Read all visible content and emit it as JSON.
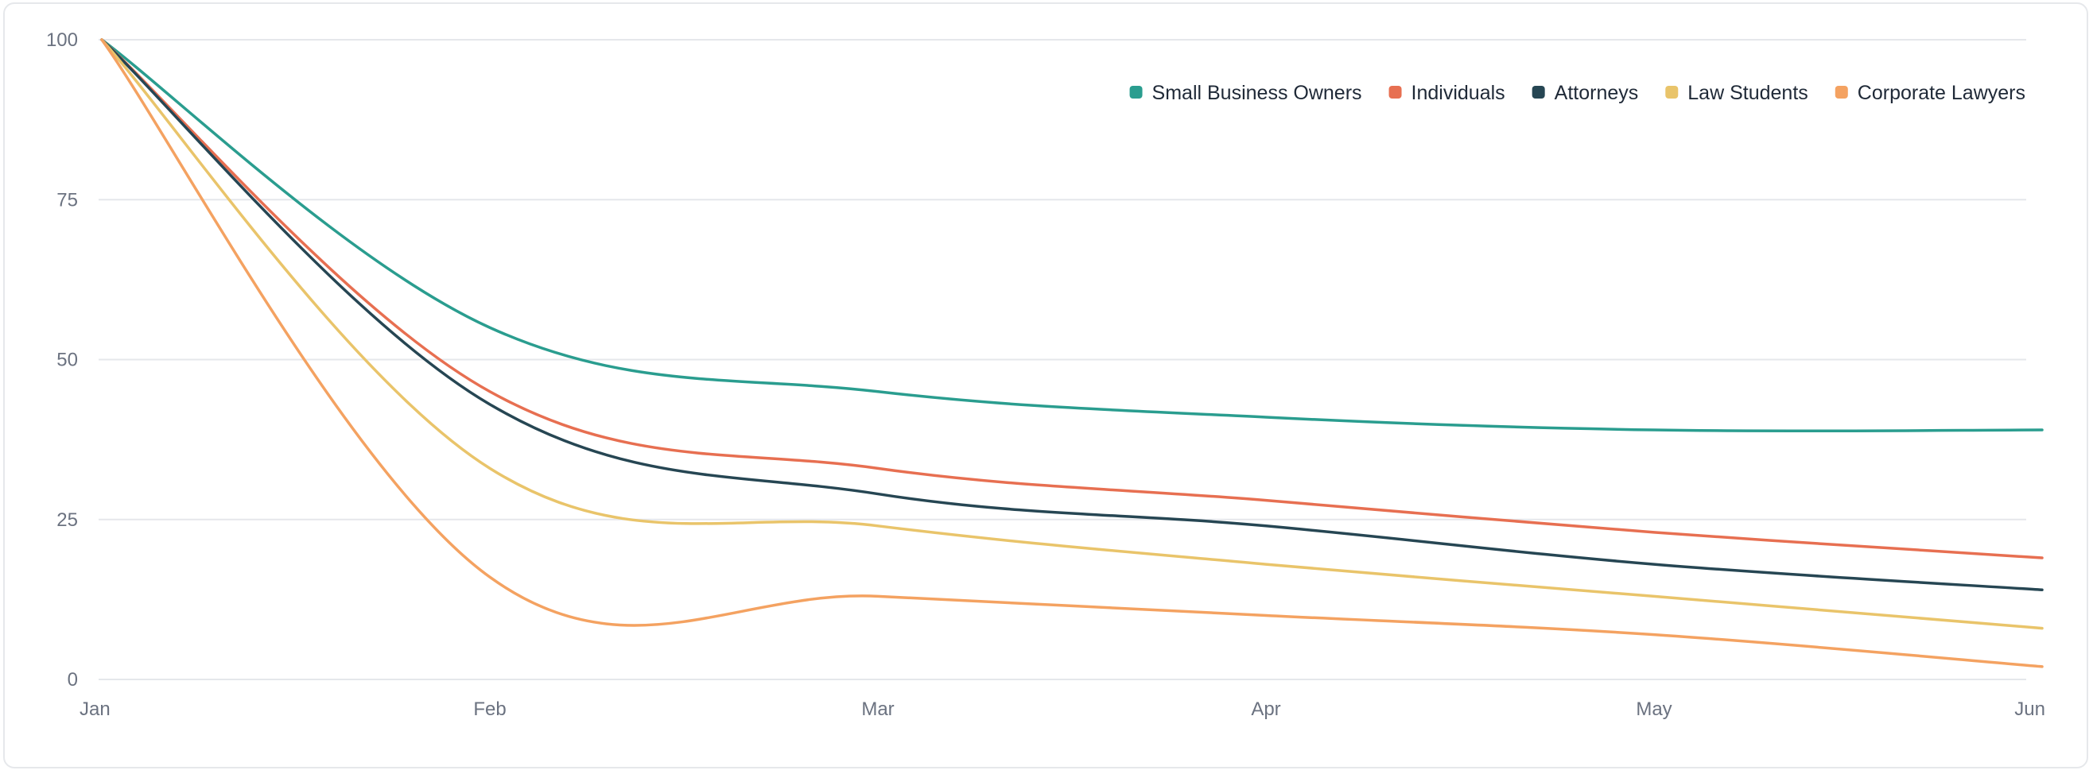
{
  "chart_data": {
    "type": "line",
    "title": "",
    "xlabel": "",
    "ylabel": "",
    "x": [
      "Jan",
      "Feb",
      "Mar",
      "Apr",
      "May",
      "Jun"
    ],
    "ylim": [
      0,
      100
    ],
    "yticks": [
      "0",
      "25",
      "50",
      "75",
      "100"
    ],
    "grid": true,
    "legend_position": "top-right",
    "series": [
      {
        "name": "Small Business Owners",
        "color": "#2a9d8f",
        "values": [
          100,
          55,
          45,
          41,
          39,
          39
        ]
      },
      {
        "name": "Individuals",
        "color": "#e76f51",
        "values": [
          100,
          45,
          33,
          28,
          23,
          19
        ]
      },
      {
        "name": "Attorneys",
        "color": "#264653",
        "values": [
          100,
          43,
          29,
          24,
          18,
          14
        ]
      },
      {
        "name": "Law Students",
        "color": "#e9c46a",
        "values": [
          100,
          33,
          24,
          18,
          13,
          8
        ]
      },
      {
        "name": "Corporate Lawyers",
        "color": "#f4a261",
        "values": [
          100,
          16,
          13,
          10,
          7,
          2
        ]
      }
    ]
  }
}
